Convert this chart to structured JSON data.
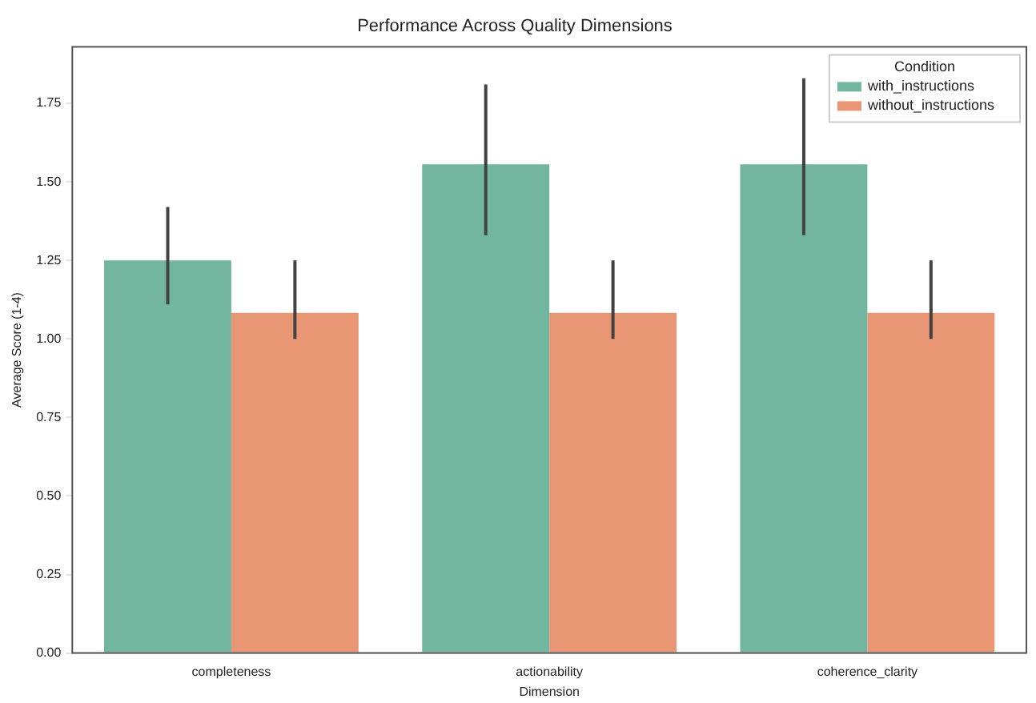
{
  "chart_data": {
    "type": "bar",
    "title": "Performance Across Quality Dimensions",
    "xlabel": "Dimension",
    "ylabel": "Average Score (1-4)",
    "legend_title": "Condition",
    "categories": [
      "completeness",
      "actionability",
      "coherence_clarity"
    ],
    "series": [
      {
        "name": "with_instructions",
        "color": "#73b6a0",
        "values": [
          1.25,
          1.556,
          1.556
        ],
        "errors": [
          [
            1.11,
            1.42
          ],
          [
            1.33,
            1.81
          ],
          [
            1.33,
            1.83
          ]
        ]
      },
      {
        "name": "without_instructions",
        "color": "#e89674",
        "values": [
          1.083,
          1.083,
          1.083
        ],
        "errors": [
          [
            1.0,
            1.25
          ],
          [
            1.0,
            1.25
          ],
          [
            1.0,
            1.25
          ]
        ]
      }
    ],
    "ylim": [
      0,
      1.93
    ],
    "yticks": [
      {
        "value": 0,
        "label": "0.00"
      },
      {
        "value": 0.25,
        "label": "0.25"
      },
      {
        "value": 0.5,
        "label": "0.50"
      },
      {
        "value": 0.75,
        "label": "0.75"
      },
      {
        "value": 1,
        "label": "1.00"
      },
      {
        "value": 1.25,
        "label": "1.25"
      },
      {
        "value": 1.5,
        "label": "1.50"
      },
      {
        "value": 1.75,
        "label": "1.75"
      }
    ],
    "grid": false,
    "legend": "top right"
  }
}
